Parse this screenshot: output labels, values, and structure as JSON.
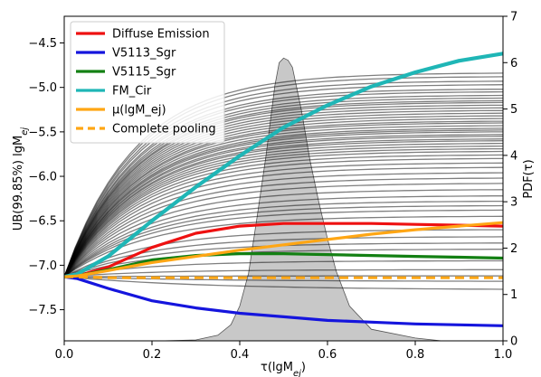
{
  "chart_data": {
    "type": "line",
    "xlabel": "τ(lgM_ej)",
    "ylabel_left": "UB(99.85%) lgM_ej",
    "ylabel_right": "PDF(τ)",
    "xlim": [
      0.0,
      1.0
    ],
    "ylim_left": [
      -7.85,
      -4.2
    ],
    "ylim_right": [
      0,
      7
    ],
    "x_ticks": [
      "0.0",
      "0.2",
      "0.4",
      "0.6",
      "0.8",
      "1.0"
    ],
    "y_left_ticks": [
      "−4.5",
      "−5.0",
      "−5.5",
      "−6.0",
      "−6.5",
      "−7.0",
      "−7.5"
    ],
    "y_right_ticks": [
      "0",
      "1",
      "2",
      "3",
      "4",
      "5",
      "6",
      "7"
    ],
    "grid": false,
    "legend_position": "top-left",
    "legend": [
      {
        "label": "Diffuse Emission",
        "color": "#ee1111",
        "style": "solid"
      },
      {
        "label": "V5113_Sgr",
        "color": "#1515dd",
        "style": "solid"
      },
      {
        "label": "V5115_Sgr",
        "color": "#138013",
        "style": "solid"
      },
      {
        "label": "FM_Cir",
        "color": "#1fb6b6",
        "style": "solid"
      },
      {
        "label": "μ(lgM_ej)",
        "color": "#ffa614",
        "style": "solid"
      },
      {
        "label": "Complete pooling",
        "color": "#ffa614",
        "style": "dashed"
      }
    ],
    "series": [
      {
        "name": "Diffuse Emission",
        "color": "#ee1111",
        "width": 3.2,
        "x": [
          0,
          0.03,
          0.1,
          0.2,
          0.3,
          0.4,
          0.5,
          0.6,
          0.7,
          0.8,
          0.9,
          1.0
        ],
        "y": [
          -7.13,
          -7.12,
          -7.02,
          -6.8,
          -6.64,
          -6.56,
          -6.53,
          -6.53,
          -6.53,
          -6.54,
          -6.55,
          -6.56
        ]
      },
      {
        "name": "V5113_Sgr",
        "color": "#1515dd",
        "width": 3.2,
        "x": [
          0,
          0.03,
          0.1,
          0.2,
          0.3,
          0.4,
          0.5,
          0.6,
          0.7,
          0.8,
          0.9,
          1.0
        ],
        "y": [
          -7.13,
          -7.15,
          -7.26,
          -7.4,
          -7.48,
          -7.54,
          -7.58,
          -7.62,
          -7.64,
          -7.66,
          -7.67,
          -7.68
        ]
      },
      {
        "name": "V5115_Sgr",
        "color": "#138013",
        "width": 3.2,
        "x": [
          0,
          0.03,
          0.1,
          0.2,
          0.3,
          0.4,
          0.5,
          0.6,
          0.7,
          0.8,
          0.9,
          1.0
        ],
        "y": [
          -7.13,
          -7.12,
          -7.05,
          -6.94,
          -6.89,
          -6.87,
          -6.87,
          -6.88,
          -6.89,
          -6.9,
          -6.91,
          -6.92
        ]
      },
      {
        "name": "FM_Cir",
        "color": "#1fb6b6",
        "width": 4.2,
        "x": [
          0,
          0.03,
          0.1,
          0.2,
          0.3,
          0.4,
          0.5,
          0.6,
          0.7,
          0.8,
          0.9,
          1.0
        ],
        "y": [
          -7.13,
          -7.1,
          -6.9,
          -6.5,
          -6.12,
          -5.77,
          -5.45,
          -5.2,
          -4.99,
          -4.83,
          -4.7,
          -4.62
        ]
      },
      {
        "name": "μ(lgM_ej)",
        "color": "#ffa614",
        "width": 3.2,
        "x": [
          0,
          0.03,
          0.1,
          0.2,
          0.3,
          0.4,
          0.5,
          0.6,
          0.7,
          0.8,
          0.9,
          1.0
        ],
        "y": [
          -7.13,
          -7.12,
          -7.06,
          -6.97,
          -6.9,
          -6.83,
          -6.77,
          -6.71,
          -6.65,
          -6.6,
          -6.56,
          -6.52
        ]
      },
      {
        "name": "Complete pooling",
        "color": "#ffa614",
        "width": 3.2,
        "dashed": true,
        "x": [
          0,
          0.03,
          0.1,
          0.2,
          0.3,
          0.4,
          0.5,
          0.6,
          0.7,
          0.8,
          0.9,
          1.0
        ],
        "y": [
          -7.13,
          -7.13,
          -7.14,
          -7.14,
          -7.14,
          -7.14,
          -7.14,
          -7.14,
          -7.14,
          -7.14,
          -7.14,
          -7.14
        ]
      }
    ],
    "individual_final_values": [
      -4.84,
      -4.88,
      -4.93,
      -4.97,
      -5.02,
      -5.05,
      -5.09,
      -5.12,
      -5.15,
      -5.17,
      -5.2,
      -5.23,
      -5.26,
      -5.29,
      -5.32,
      -5.35,
      -5.38,
      -5.4,
      -5.43,
      -5.46,
      -5.48,
      -5.5,
      -5.53,
      -5.55,
      -5.58,
      -5.6,
      -5.63,
      -5.66,
      -5.69,
      -5.72,
      -5.76,
      -5.8,
      -5.85,
      -5.9,
      -5.96,
      -6.02,
      -6.08,
      -6.15,
      -6.22,
      -6.28,
      -6.33,
      -6.38,
      -6.45,
      -6.6,
      -6.68,
      -6.75,
      -6.82,
      -6.95,
      -7.05,
      -7.12,
      -7.18,
      -7.27
    ],
    "pdf": {
      "x": [
        0.0,
        0.22,
        0.3,
        0.35,
        0.38,
        0.4,
        0.42,
        0.44,
        0.46,
        0.48,
        0.49,
        0.5,
        0.51,
        0.52,
        0.54,
        0.56,
        0.58,
        0.6,
        0.62,
        0.65,
        0.7,
        0.8,
        0.86,
        1.0
      ],
      "y": [
        0.0,
        0.0,
        0.02,
        0.12,
        0.35,
        0.75,
        1.45,
        2.7,
        4.0,
        5.5,
        6.0,
        6.1,
        6.05,
        5.9,
        5.0,
        3.9,
        3.0,
        2.2,
        1.5,
        0.75,
        0.25,
        0.06,
        0.0,
        0.0
      ]
    }
  }
}
